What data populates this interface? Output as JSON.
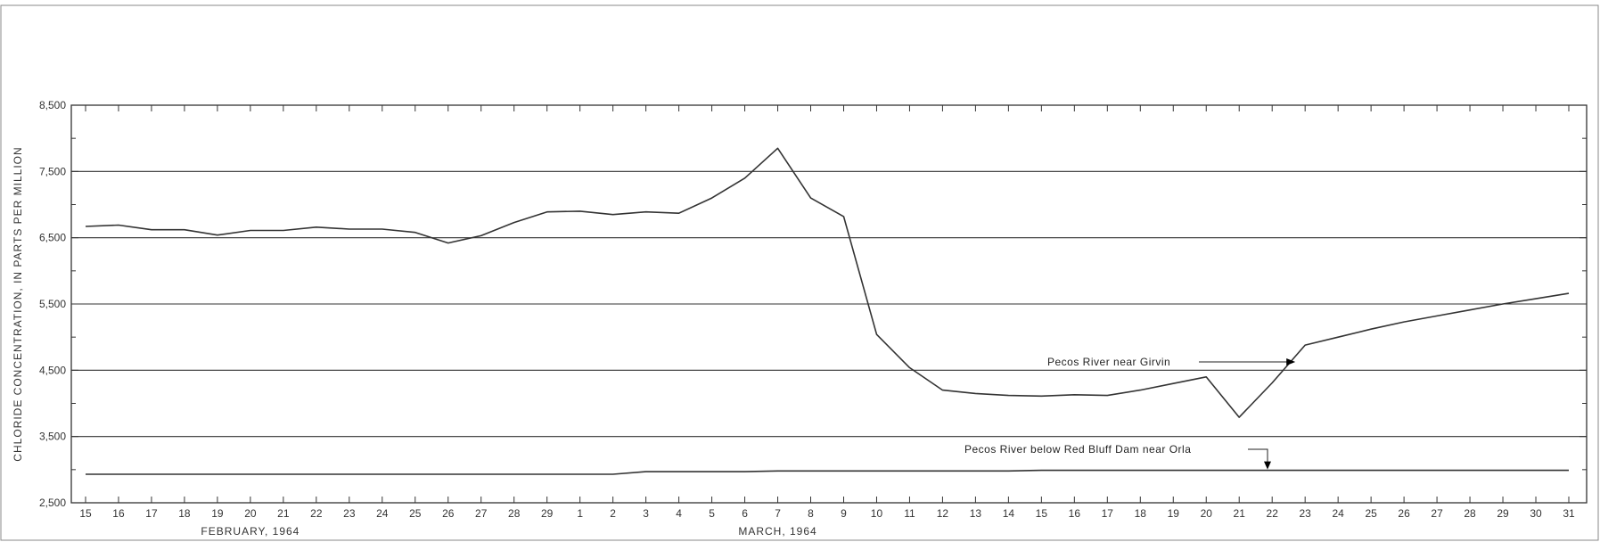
{
  "chart_data": {
    "type": "line",
    "title": "",
    "ylabel": "CHLORIDE CONCENTRATION, IN PARTS PER MILLION",
    "xlabel": "",
    "ylim": [
      2500,
      8500
    ],
    "yticks": [
      "2,500",
      "3,500",
      "4,500",
      "5,500",
      "6,500",
      "7,500",
      "8,500"
    ],
    "ytick_values": [
      2500,
      3500,
      4500,
      5500,
      6500,
      7500,
      8500
    ],
    "grid": "horizontal at labeled ticks",
    "x": [
      "15",
      "16",
      "17",
      "18",
      "19",
      "20",
      "21",
      "22",
      "23",
      "24",
      "25",
      "26",
      "27",
      "28",
      "29",
      "1",
      "2",
      "3",
      "4",
      "5",
      "6",
      "7",
      "8",
      "9",
      "10",
      "11",
      "12",
      "13",
      "14",
      "15",
      "16",
      "17",
      "18",
      "19",
      "20",
      "21",
      "22",
      "23",
      "24",
      "25",
      "26",
      "27",
      "28",
      "29",
      "30",
      "31"
    ],
    "month_labels": [
      {
        "label": "FEBRUARY, 1964",
        "at": "20"
      },
      {
        "label": "MARCH, 1964",
        "at": "7"
      }
    ],
    "series": [
      {
        "name": "Pecos River near Girvin",
        "values": [
          6670,
          6690,
          6620,
          6620,
          6540,
          6610,
          6610,
          6660,
          6630,
          6630,
          6580,
          6420,
          6530,
          6730,
          6890,
          6900,
          6850,
          6890,
          6870,
          7100,
          7400,
          7850,
          7100,
          6820,
          5040,
          4540,
          4200,
          4150,
          4120,
          4110,
          4130,
          4120,
          4200,
          4300,
          4400,
          3790,
          4310,
          4880,
          5000,
          5120,
          5230,
          5320,
          5410,
          5500,
          5580,
          5660
        ]
      },
      {
        "name": "Pecos River below Red Bluff Dam near Orla",
        "values": [
          2930,
          2930,
          2930,
          2930,
          2930,
          2930,
          2930,
          2930,
          2930,
          2930,
          2930,
          2930,
          2930,
          2930,
          2930,
          2930,
          2930,
          2970,
          2970,
          2970,
          2970,
          2980,
          2980,
          2980,
          2980,
          2980,
          2980,
          2980,
          2980,
          2990,
          2990,
          2990,
          2990,
          2990,
          2990,
          2990,
          2990,
          2990,
          2990,
          2990,
          2990,
          2990,
          2990,
          2990,
          2990,
          2990
        ]
      }
    ],
    "annotations": [
      {
        "text": "Pecos River near Girvin",
        "points_to": "Pecos River near Girvin"
      },
      {
        "text": "Pecos River below Red Bluff Dam near Orla",
        "points_to": "Pecos River below Red Bluff Dam near Orla"
      }
    ]
  }
}
